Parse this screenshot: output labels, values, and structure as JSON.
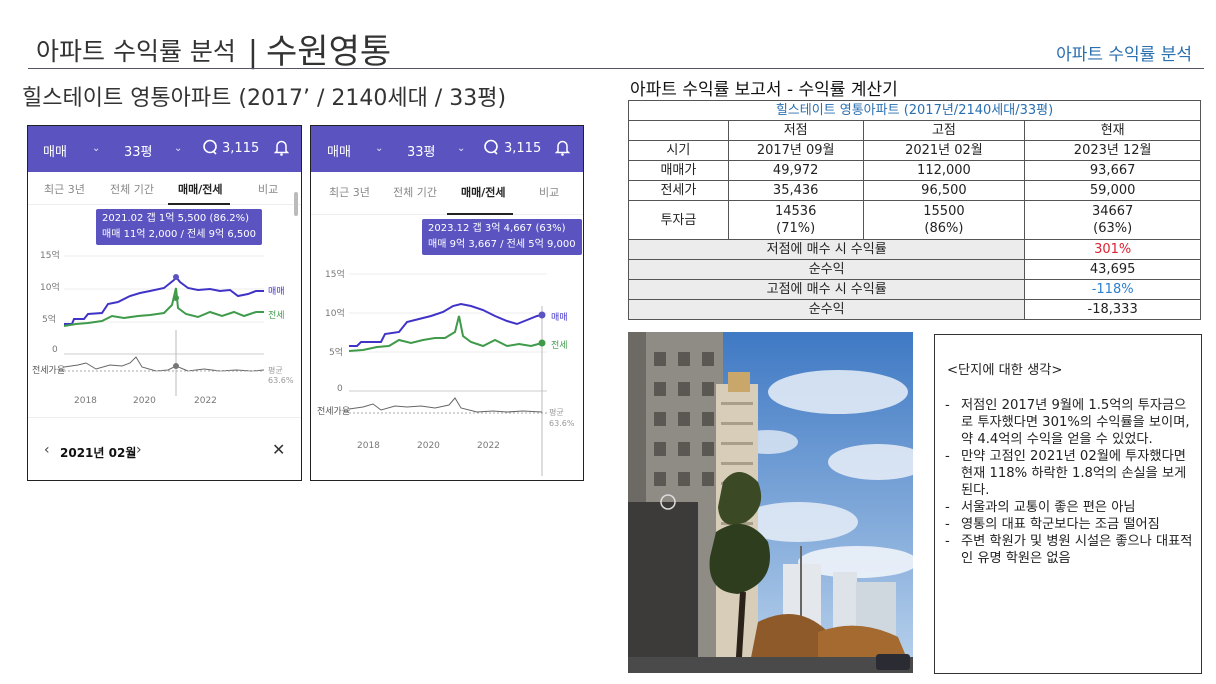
{
  "header": {
    "title": "아파트 수익률 분석",
    "separator": "|",
    "location": "수원영통",
    "right_label": "아파트 수익률 분석"
  },
  "subtitle": "힐스테이트 영통아파트 (2017’ / 2140세대 / 33평)",
  "colors": {
    "accent": "#5b54c0",
    "sale_line": "#4033c8",
    "jeonse_line": "#3f9a4a",
    "title_blue": "#2a6fb0",
    "red": "#dd2233",
    "blue": "#2a7fcf"
  },
  "phone1": {
    "filter1": "매매",
    "filter2": "33평",
    "count": "3,115",
    "tabs": [
      "최근 3년",
      "전체 기간",
      "매매/전세",
      "비교"
    ],
    "active_tab": 2,
    "tooltip_line1": "2021.02  갭 1억 5,500 (86.2%)",
    "tooltip_line2": "매매 11억 2,000 / 전세 9억 6,500",
    "y_ticks": [
      "15억",
      "10억",
      "5억",
      "0"
    ],
    "x_ticks": [
      "2018",
      "2020",
      "2022"
    ],
    "legend_sale": "매매",
    "legend_jeonse": "전세",
    "ratio_label": "전세가율",
    "avg_label": "평균",
    "avg_value": "63.6%",
    "date_nav": "2021년 02월",
    "prev_icon": "chevron-left-icon",
    "next_icon": "chevron-right-icon",
    "close_icon": "close-icon"
  },
  "phone2": {
    "filter1": "매매",
    "filter2": "33평",
    "count": "3,115",
    "tabs": [
      "최근 3년",
      "전체 기간",
      "매매/전세",
      "비교"
    ],
    "active_tab": 2,
    "tooltip_line1": "2023.12  갭 3억 4,667 (63%)",
    "tooltip_line2": "매매 9억 3,667 / 전세 5억 9,000",
    "y_ticks": [
      "15억",
      "10억",
      "5억",
      "0"
    ],
    "x_ticks": [
      "2018",
      "2020",
      "2022"
    ],
    "legend_sale": "매매",
    "legend_jeonse": "전세",
    "ratio_label": "전세가율",
    "avg_label": "평균",
    "avg_value": "63.6%"
  },
  "table": {
    "title": "아파트 수익률 보고서 - 수익률 계산기",
    "apt_header": "힐스테이트 영통아파트 (2017년/2140세대/33평)",
    "columns": [
      "저점",
      "고점",
      "현재"
    ],
    "rows": [
      {
        "label": "시기",
        "values": [
          "2017년 09월",
          "2021년 02월",
          "2023년 12월"
        ]
      },
      {
        "label": "매매가",
        "values": [
          "49,972",
          "112,000",
          "93,667"
        ]
      },
      {
        "label": "전세가",
        "values": [
          "35,436",
          "96,500",
          "59,000"
        ]
      },
      {
        "label": "투자금",
        "values": [
          "14536",
          "15500",
          "34667"
        ],
        "sub": [
          "(71%)",
          "(86%)",
          "(63%)"
        ]
      }
    ],
    "low_label": "저점에 매수 시 수익률",
    "low_rate": "301%",
    "net1_label": "순수익",
    "net1_value": "43,695",
    "high_label": "고점에 매수 시 수익률",
    "high_rate": "-118%",
    "net2_label": "순수익",
    "net2_value": "-18,333"
  },
  "notes": {
    "title": "<단지에 대한 생각>",
    "items": [
      "저점인 2017년 9월에 1.5억의 투자금으로 투자했다면 301%의 수익률을 보이며, 약 4.4억의 수익을 얻을 수 있었다.",
      "만약 고점인 2021년 02월에 투자했다면 현재 118% 하락한 1.8억의 손실을 보게 된다.",
      "서울과의 교통이 좋은 편은 아님",
      "영통의 대표 학군보다는 조금 떨어짐",
      "주변 학원가 및 병원 시설은 좋으나 대표적인 유명 학원은 없음"
    ]
  }
}
